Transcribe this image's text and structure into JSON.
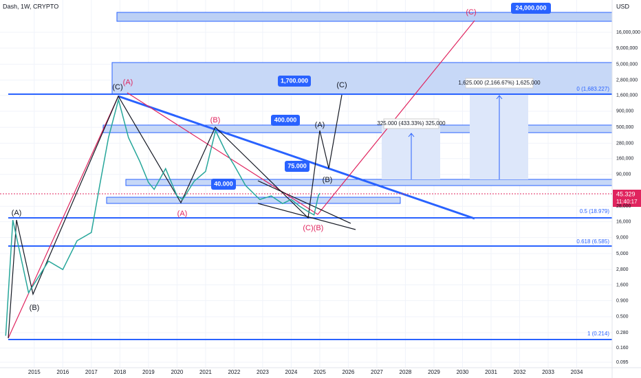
{
  "header": {
    "symbol": "Dash, 1W, CRYPTO",
    "currency": "USD"
  },
  "chart_data": {
    "type": "line",
    "color": "#26a69a",
    "log_y": true,
    "grid": true,
    "x": [
      2014.0,
      2014.25,
      2014.8,
      2015.5,
      2016.0,
      2016.5,
      2017.0,
      2017.3,
      2017.6,
      2017.95,
      2018.3,
      2018.7,
      2019.0,
      2019.2,
      2019.6,
      2020.0,
      2020.2,
      2020.6,
      2021.0,
      2021.35,
      2021.7,
      2022.0,
      2022.4,
      2022.9,
      2023.3,
      2023.7,
      2024.0,
      2024.3,
      2024.6,
      2024.8,
      2024.95,
      2025.0
    ],
    "values": [
      0.25,
      17,
      1.2,
      3.8,
      2.8,
      8,
      10.8,
      63,
      344,
      1370,
      344,
      143,
      67,
      52,
      111,
      41,
      36,
      70,
      100,
      443,
      209,
      126,
      60,
      36,
      41,
      31,
      36,
      28,
      23,
      20.5,
      41,
      45.329
    ],
    "xlim": [
      2013.8,
      2035.24
    ],
    "xticks": [
      2015,
      2016,
      2017,
      2018,
      2019,
      2020,
      2021,
      2022,
      2023,
      2024,
      2025,
      2026,
      2027,
      2028,
      2029,
      2030,
      2031,
      2032,
      2033,
      2034
    ],
    "ylim": [
      0.078,
      52000
    ],
    "yticks": [
      {
        "value": 16000,
        "label": "16,000,000"
      },
      {
        "value": 9000,
        "label": "9,000,000"
      },
      {
        "value": 5000,
        "label": "5,000,000"
      },
      {
        "value": 2800,
        "label": "2,800,000"
      },
      {
        "value": 1600,
        "label": "1,600,000"
      },
      {
        "value": 900,
        "label": "900,000"
      },
      {
        "value": 500,
        "label": "500,000"
      },
      {
        "value": 280,
        "label": "280,000"
      },
      {
        "value": 160,
        "label": "160,000"
      },
      {
        "value": 90,
        "label": "90,000"
      },
      {
        "value": 28,
        "label": "28,000"
      },
      {
        "value": 16,
        "label": "16,000"
      },
      {
        "value": 9,
        "label": "9,000"
      },
      {
        "value": 5,
        "label": "5,000"
      },
      {
        "value": 2.8,
        "label": "2,800"
      },
      {
        "value": 1.6,
        "label": "1,600"
      },
      {
        "value": 0.9,
        "label": "0.900"
      },
      {
        "value": 0.5,
        "label": "0.500"
      },
      {
        "value": 0.28,
        "label": "0.280"
      },
      {
        "value": 0.16,
        "label": "0.160"
      },
      0.095
    ],
    "last_price": {
      "value": 45.329,
      "timer": "11:40:17"
    },
    "wave_labels": [
      "(A)",
      "(B)",
      "(C)",
      "(A)",
      "(B)",
      "(A)",
      "(A)",
      "(C)",
      "(B)",
      "(C)",
      "(B)",
      "(C)"
    ],
    "callouts": [
      "24,000.000",
      "1,700.000",
      "400.000",
      "75.000",
      "40.000"
    ],
    "fib_labels": [
      "0 (1,683.227)",
      "0.5 (18.979)",
      "0.618 (6.585)",
      "1 (0.214)"
    ],
    "measure_labels": [
      "325.000 (433.33%) 325,000",
      "1,625.000 (2,166.67%) 1,625,000"
    ]
  }
}
